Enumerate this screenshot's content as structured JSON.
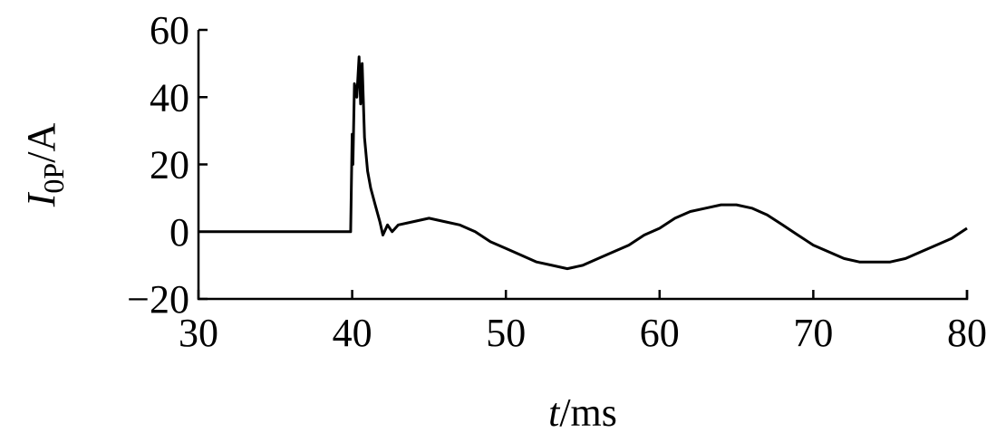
{
  "chart_data": {
    "type": "line",
    "x_label": [
      "t",
      "/ms"
    ],
    "y_label": [
      "I",
      "0P",
      "/A"
    ],
    "x": [
      30,
      39.9,
      40,
      40.05,
      40.15,
      40.3,
      40.45,
      40.55,
      40.65,
      40.8,
      41,
      41.2,
      41.5,
      41.8,
      42,
      42.3,
      42.6,
      43,
      44,
      45,
      46,
      47,
      48,
      49,
      50,
      51,
      52,
      53,
      54,
      55,
      56,
      57,
      58,
      59,
      60,
      61,
      62,
      63,
      64,
      65,
      66,
      67,
      68,
      69,
      70,
      71,
      72,
      73,
      74,
      75,
      76,
      77,
      78,
      79,
      80
    ],
    "series": [
      {
        "color": "#000000",
        "values": [
          0,
          0,
          29,
          20,
          44,
          40,
          52,
          38,
          50,
          28,
          18,
          13,
          8,
          3,
          -1,
          2,
          0,
          2,
          3,
          4,
          3,
          2,
          0,
          -3,
          -5,
          -7,
          -9,
          -10,
          -11,
          -10,
          -8,
          -6,
          -4,
          -1,
          1,
          4,
          6,
          7,
          8,
          8,
          7,
          5,
          2,
          -1,
          -4,
          -6,
          -8,
          -9,
          -9,
          -9,
          -8,
          -6,
          -4,
          -2,
          1
        ]
      }
    ],
    "xlim": [
      30,
      80
    ],
    "xticks": [
      30,
      40,
      50,
      60,
      70,
      80
    ],
    "ylim": [
      -20,
      60
    ],
    "yticks": [
      {
        "value": -20,
        "label": "−20"
      },
      0,
      20,
      40,
      60
    ]
  }
}
